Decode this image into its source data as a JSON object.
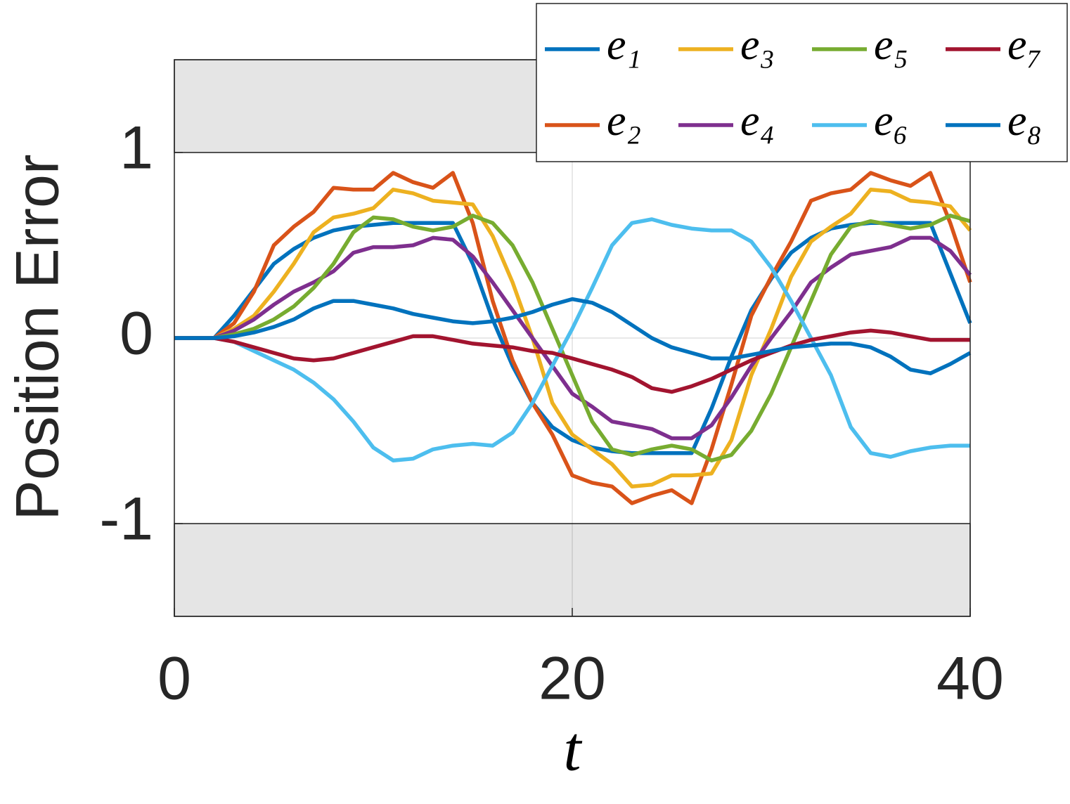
{
  "chart_data": {
    "type": "line",
    "y_label": "Position Error",
    "x_label": "t",
    "x": [
      0,
      1,
      2,
      3,
      4,
      5,
      6,
      7,
      8,
      9,
      10,
      11,
      12,
      13,
      14,
      15,
      16,
      17,
      18,
      19,
      20,
      21,
      22,
      23,
      24,
      25,
      26,
      27,
      28,
      29,
      30,
      31,
      32,
      33,
      34,
      35,
      36,
      37,
      38,
      39,
      40
    ],
    "series": [
      {
        "name": "e₁",
        "color": "#0072BD",
        "values": [
          0,
          0,
          0,
          0.12,
          0.26,
          0.4,
          0.48,
          0.54,
          0.58,
          0.6,
          0.61,
          0.62,
          0.62,
          0.62,
          0.62,
          0.4,
          0.1,
          -0.15,
          -0.35,
          -0.48,
          -0.55,
          -0.59,
          -0.61,
          -0.62,
          -0.62,
          -0.62,
          -0.62,
          -0.38,
          -0.1,
          0.15,
          0.32,
          0.46,
          0.54,
          0.59,
          0.61,
          0.62,
          0.62,
          0.62,
          0.62,
          0.35,
          0.08
        ]
      },
      {
        "name": "e₂",
        "color": "#D95319",
        "values": [
          0,
          0,
          0,
          0.08,
          0.25,
          0.5,
          0.6,
          0.68,
          0.81,
          0.8,
          0.8,
          0.89,
          0.84,
          0.81,
          0.89,
          0.62,
          0.2,
          -0.12,
          -0.35,
          -0.52,
          -0.74,
          -0.78,
          -0.8,
          -0.89,
          -0.85,
          -0.82,
          -0.89,
          -0.6,
          -0.25,
          0.12,
          0.33,
          0.52,
          0.74,
          0.78,
          0.8,
          0.89,
          0.85,
          0.82,
          0.89,
          0.62,
          0.3
        ]
      },
      {
        "name": "e₃",
        "color": "#EDB120",
        "values": [
          0,
          0,
          0,
          0.05,
          0.12,
          0.25,
          0.4,
          0.57,
          0.65,
          0.67,
          0.7,
          0.8,
          0.78,
          0.74,
          0.73,
          0.72,
          0.55,
          0.3,
          0,
          -0.35,
          -0.52,
          -0.6,
          -0.68,
          -0.8,
          -0.79,
          -0.74,
          -0.74,
          -0.73,
          -0.55,
          -0.2,
          0.05,
          0.33,
          0.52,
          0.6,
          0.67,
          0.8,
          0.79,
          0.74,
          0.73,
          0.71,
          0.58
        ]
      },
      {
        "name": "e₄",
        "color": "#7E2F8E",
        "values": [
          0,
          0,
          0,
          0.04,
          0.1,
          0.18,
          0.25,
          0.3,
          0.36,
          0.46,
          0.49,
          0.49,
          0.5,
          0.54,
          0.53,
          0.44,
          0.3,
          0.15,
          0,
          -0.15,
          -0.3,
          -0.37,
          -0.45,
          -0.47,
          -0.49,
          -0.54,
          -0.54,
          -0.47,
          -0.32,
          -0.15,
          0,
          0.14,
          0.3,
          0.38,
          0.45,
          0.47,
          0.49,
          0.54,
          0.54,
          0.47,
          0.34
        ]
      },
      {
        "name": "e₅",
        "color": "#77AC30",
        "values": [
          0,
          0,
          0,
          0.02,
          0.05,
          0.1,
          0.17,
          0.27,
          0.4,
          0.57,
          0.65,
          0.64,
          0.6,
          0.58,
          0.6,
          0.66,
          0.62,
          0.5,
          0.3,
          0.05,
          -0.2,
          -0.45,
          -0.6,
          -0.63,
          -0.6,
          -0.58,
          -0.6,
          -0.66,
          -0.63,
          -0.5,
          -0.3,
          -0.05,
          0.2,
          0.45,
          0.6,
          0.63,
          0.61,
          0.59,
          0.61,
          0.66,
          0.63
        ]
      },
      {
        "name": "e₆",
        "color": "#4DBEEE",
        "values": [
          0,
          0,
          0,
          -0.02,
          -0.07,
          -0.12,
          -0.17,
          -0.24,
          -0.33,
          -0.45,
          -0.59,
          -0.66,
          -0.65,
          -0.6,
          -0.58,
          -0.57,
          -0.58,
          -0.51,
          -0.35,
          -0.15,
          0.05,
          0.27,
          0.5,
          0.62,
          0.64,
          0.61,
          0.59,
          0.58,
          0.58,
          0.52,
          0.38,
          0.2,
          0,
          -0.2,
          -0.48,
          -0.62,
          -0.64,
          -0.61,
          -0.59,
          -0.58,
          -0.58
        ]
      },
      {
        "name": "e₇",
        "color": "#A2142F",
        "values": [
          0,
          0,
          0,
          -0.02,
          -0.05,
          -0.08,
          -0.11,
          -0.12,
          -0.11,
          -0.08,
          -0.05,
          -0.02,
          0.01,
          0.01,
          -0.01,
          -0.03,
          -0.04,
          -0.05,
          -0.07,
          -0.08,
          -0.11,
          -0.14,
          -0.17,
          -0.21,
          -0.27,
          -0.29,
          -0.26,
          -0.22,
          -0.17,
          -0.12,
          -0.08,
          -0.04,
          -0.01,
          0.01,
          0.03,
          0.04,
          0.03,
          0.01,
          -0.01,
          -0.01,
          -0.01
        ]
      },
      {
        "name": "e₈",
        "color": "#0072BD",
        "values": [
          0,
          0,
          0,
          0.01,
          0.03,
          0.06,
          0.1,
          0.16,
          0.2,
          0.2,
          0.18,
          0.16,
          0.13,
          0.11,
          0.09,
          0.08,
          0.09,
          0.11,
          0.14,
          0.18,
          0.21,
          0.19,
          0.14,
          0.07,
          0,
          -0.05,
          -0.08,
          -0.11,
          -0.11,
          -0.09,
          -0.07,
          -0.05,
          -0.04,
          -0.03,
          -0.03,
          -0.05,
          -0.1,
          -0.17,
          -0.19,
          -0.14,
          -0.08
        ]
      }
    ],
    "xlim": [
      0,
      40
    ],
    "ylim": [
      -1.5,
      1.5
    ],
    "xticks": [
      0,
      20,
      40
    ],
    "yticks": [
      -1,
      0,
      1
    ],
    "shaded_bounds": [
      -1,
      1
    ],
    "grid": true,
    "legend": "top right"
  }
}
